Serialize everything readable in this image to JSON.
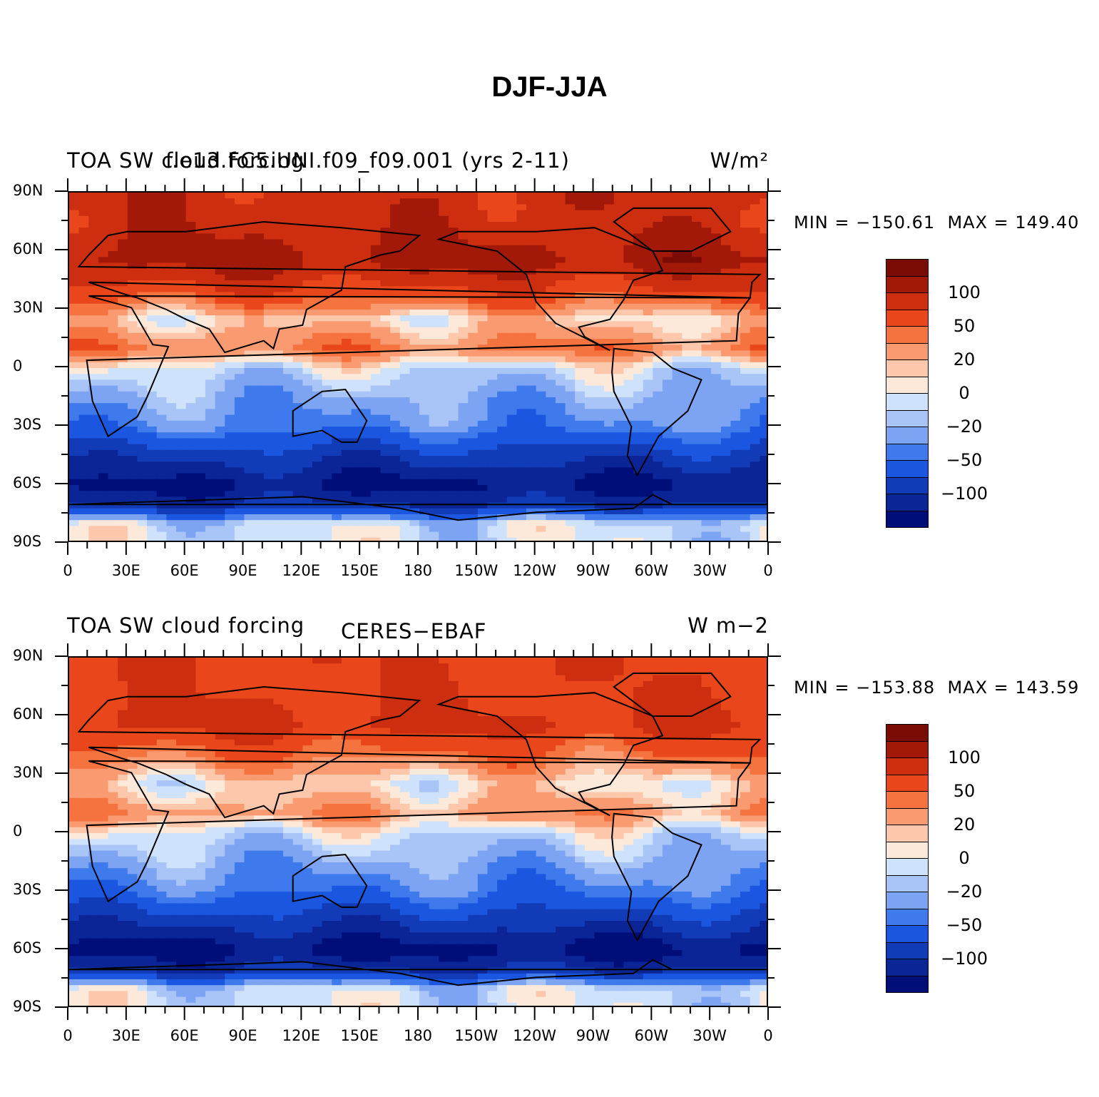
{
  "figure": {
    "title": "DJF-JJA"
  },
  "colors": {
    "palette": [
      "#000e7a",
      "#0b2596",
      "#123bb8",
      "#1b56e0",
      "#3f7aed",
      "#7da4f2",
      "#a9c4f6",
      "#cfe2fb",
      "#fde9d9",
      "#fcc7ab",
      "#f99a70",
      "#f4733e",
      "#e9461c",
      "#cc2e0f",
      "#a2190a",
      "#7a0b05"
    ]
  },
  "panels": [
    {
      "title_left": "TOA SW cloud forcing",
      "title_center": "f.e13.FC5.UNI.f09_f09.001 (yrs 2-11)",
      "units": "W/m²",
      "min_label": "MIN = −150.61",
      "max_label": "MAX = 149.40"
    },
    {
      "title_left": "TOA SW cloud forcing",
      "title_center": "CERES−EBAF",
      "units": "W m−2",
      "min_label": "MIN = −153.88",
      "max_label": "MAX = 143.59"
    }
  ],
  "axes": {
    "lat_ticks": [
      "90N",
      "60N",
      "30N",
      "0",
      "30S",
      "60S",
      "90S"
    ],
    "lon_ticks": [
      "0",
      "30E",
      "60E",
      "90E",
      "120E",
      "150E",
      "180",
      "150W",
      "120W",
      "90W",
      "60W",
      "30W",
      "0"
    ]
  },
  "colorbar": {
    "labels": [
      "100",
      "50",
      "20",
      "0",
      "−20",
      "−50",
      "−100"
    ],
    "levels": [
      -150,
      -125,
      -100,
      -75,
      -50,
      -35,
      -20,
      -10,
      0,
      10,
      20,
      35,
      50,
      75,
      100,
      125,
      150
    ]
  },
  "chart_data": [
    {
      "type": "heatmap",
      "title": "TOA SW cloud forcing",
      "subtitle": "f.e13.FC5.UNI.f09_f09.001 (yrs 2-11)",
      "units": "W/m²",
      "xlabel": "",
      "ylabel": "",
      "xlim": [
        0,
        360
      ],
      "ylim": [
        -90,
        90
      ],
      "min": -150.61,
      "max": 149.4,
      "zones": [
        {
          "lat": 75,
          "value": 90
        },
        {
          "lat": 55,
          "value": 110
        },
        {
          "lat": 40,
          "value": 70
        },
        {
          "lat": 25,
          "value": 10
        },
        {
          "lat": 10,
          "value": 40
        },
        {
          "lat": 0,
          "value": -5
        },
        {
          "lat": -15,
          "value": -25
        },
        {
          "lat": -30,
          "value": -40
        },
        {
          "lat": -45,
          "value": -90
        },
        {
          "lat": -60,
          "value": -130
        },
        {
          "lat": -70,
          "value": -100
        },
        {
          "lat": -80,
          "value": -5
        }
      ]
    },
    {
      "type": "heatmap",
      "title": "TOA SW cloud forcing",
      "subtitle": "CERES−EBAF",
      "units": "W m−2",
      "xlabel": "",
      "ylabel": "",
      "xlim": [
        0,
        360
      ],
      "ylim": [
        -90,
        90
      ],
      "min": -153.88,
      "max": 143.59,
      "zones": [
        {
          "lat": 75,
          "value": 70
        },
        {
          "lat": 55,
          "value": 80
        },
        {
          "lat": 40,
          "value": 45
        },
        {
          "lat": 25,
          "value": 5
        },
        {
          "lat": 10,
          "value": 30
        },
        {
          "lat": 0,
          "value": -5
        },
        {
          "lat": -15,
          "value": -25
        },
        {
          "lat": -30,
          "value": -45
        },
        {
          "lat": -45,
          "value": -90
        },
        {
          "lat": -60,
          "value": -135
        },
        {
          "lat": -70,
          "value": -100
        },
        {
          "lat": -80,
          "value": -5
        }
      ]
    }
  ]
}
